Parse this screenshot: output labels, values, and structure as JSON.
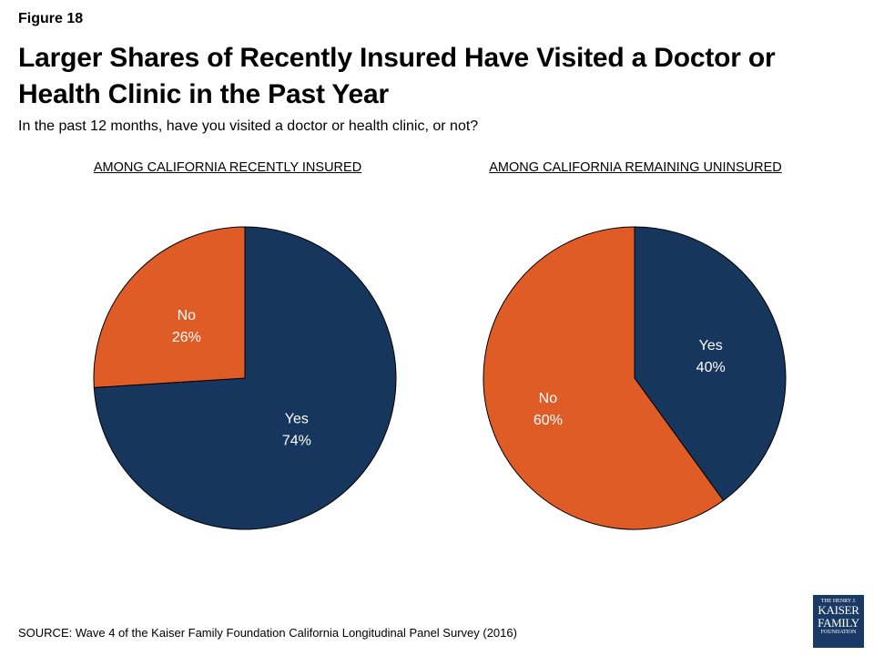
{
  "figure_label": "Figure 18",
  "title": "Larger Shares of Recently Insured Have Visited a Doctor or Health Clinic in the Past Year",
  "subtitle": "In the past 12 months, have you visited a doctor or health clinic, or not?",
  "source": "SOURCE: Wave 4 of the Kaiser Family Foundation California Longitudinal Panel Survey (2016)",
  "logo": {
    "line1": "THE HENRY J.",
    "line2": "KAISER",
    "line3": "FAMILY",
    "line4": "FOUNDATION"
  },
  "colors": {
    "yes": "#17365d",
    "no": "#e05c27"
  },
  "chart_data": [
    {
      "type": "pie",
      "title": "AMONG CALIFORNIA RECENTLY INSURED",
      "slices": [
        {
          "label": "Yes",
          "value": 74,
          "display": "74%"
        },
        {
          "label": "No",
          "value": 26,
          "display": "26%"
        }
      ]
    },
    {
      "type": "pie",
      "title": "AMONG CALIFORNIA REMAINING UNINSURED",
      "slices": [
        {
          "label": "Yes",
          "value": 40,
          "display": "40%"
        },
        {
          "label": "No",
          "value": 60,
          "display": "60%"
        }
      ]
    }
  ]
}
